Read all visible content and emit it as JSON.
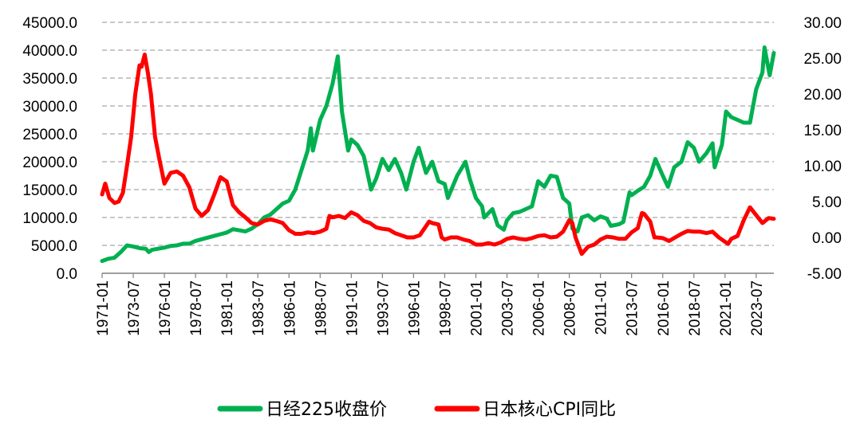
{
  "chart_data": {
    "type": "line",
    "title": "",
    "xlabel": "",
    "ylabel": "",
    "y2label": "",
    "x_start": "1971-01",
    "x_end": "2024-12",
    "x_ticks": [
      "1971-01",
      "1973-07",
      "1976-01",
      "1978-07",
      "1981-01",
      "1983-07",
      "1986-01",
      "1988-07",
      "1991-01",
      "1993-07",
      "1996-01",
      "1998-07",
      "2001-01",
      "2003-07",
      "2006-01",
      "2008-07",
      "2011-01",
      "2013-07",
      "2016-01",
      "2018-07",
      "2021-01",
      "2023-07"
    ],
    "y_left": {
      "min": 0,
      "max": 45000,
      "ticks": [
        "0.0",
        "5000.0",
        "10000.0",
        "15000.0",
        "20000.0",
        "25000.0",
        "30000.0",
        "35000.0",
        "40000.0",
        "45000.0"
      ]
    },
    "y_right": {
      "min": -5,
      "max": 30,
      "ticks": [
        "-5.00",
        "0.00",
        "5.00",
        "10.00",
        "15.00",
        "20.00",
        "25.00",
        "30.00"
      ]
    },
    "grid": "horizontal-dashed",
    "legend_position": "bottom",
    "series": [
      {
        "name": "日经225收盘价",
        "axis": "left",
        "color": "#00b050",
        "points": [
          [
            "1971-01",
            2200
          ],
          [
            "1971-07",
            2600
          ],
          [
            "1972-01",
            2800
          ],
          [
            "1972-07",
            3800
          ],
          [
            "1973-01",
            5000
          ],
          [
            "1973-07",
            4800
          ],
          [
            "1974-01",
            4500
          ],
          [
            "1974-07",
            4400
          ],
          [
            "1974-10",
            3800
          ],
          [
            "1975-01",
            4200
          ],
          [
            "1975-07",
            4400
          ],
          [
            "1976-01",
            4600
          ],
          [
            "1976-07",
            4900
          ],
          [
            "1977-01",
            5000
          ],
          [
            "1977-07",
            5300
          ],
          [
            "1978-01",
            5300
          ],
          [
            "1978-07",
            5800
          ],
          [
            "1979-01",
            6100
          ],
          [
            "1979-07",
            6400
          ],
          [
            "1980-01",
            6700
          ],
          [
            "1980-07",
            7000
          ],
          [
            "1981-01",
            7300
          ],
          [
            "1981-07",
            7900
          ],
          [
            "1982-01",
            7700
          ],
          [
            "1982-07",
            7500
          ],
          [
            "1983-01",
            8000
          ],
          [
            "1983-07",
            8800
          ],
          [
            "1984-01",
            10000
          ],
          [
            "1984-07",
            10500
          ],
          [
            "1985-01",
            11500
          ],
          [
            "1985-07",
            12500
          ],
          [
            "1986-01",
            13000
          ],
          [
            "1986-07",
            15000
          ],
          [
            "1987-01",
            18500
          ],
          [
            "1987-07",
            22000
          ],
          [
            "1987-10",
            26000
          ],
          [
            "1987-12",
            22000
          ],
          [
            "1988-07",
            27500
          ],
          [
            "1989-01",
            30000
          ],
          [
            "1989-07",
            34000
          ],
          [
            "1989-12",
            38900
          ],
          [
            "1990-04",
            29000
          ],
          [
            "1990-10",
            22000
          ],
          [
            "1991-01",
            24000
          ],
          [
            "1991-07",
            23000
          ],
          [
            "1992-01",
            21000
          ],
          [
            "1992-08",
            15000
          ],
          [
            "1993-01",
            17000
          ],
          [
            "1993-07",
            20500
          ],
          [
            "1994-01",
            18500
          ],
          [
            "1994-07",
            20500
          ],
          [
            "1995-01",
            18000
          ],
          [
            "1995-06",
            15000
          ],
          [
            "1996-01",
            20000
          ],
          [
            "1996-06",
            22500
          ],
          [
            "1997-01",
            18000
          ],
          [
            "1997-07",
            20000
          ],
          [
            "1998-01",
            16500
          ],
          [
            "1998-07",
            16000
          ],
          [
            "1998-10",
            13500
          ],
          [
            "1999-07",
            17500
          ],
          [
            "2000-03",
            20000
          ],
          [
            "2000-07",
            17000
          ],
          [
            "2001-01",
            13500
          ],
          [
            "2001-07",
            12000
          ],
          [
            "2001-09",
            10000
          ],
          [
            "2002-05",
            11500
          ],
          [
            "2002-10",
            8600
          ],
          [
            "2003-04",
            7800
          ],
          [
            "2003-07",
            9500
          ],
          [
            "2004-01",
            10800
          ],
          [
            "2004-07",
            11000
          ],
          [
            "2005-01",
            11500
          ],
          [
            "2005-07",
            12000
          ],
          [
            "2006-01",
            16500
          ],
          [
            "2006-07",
            15500
          ],
          [
            "2007-01",
            17500
          ],
          [
            "2007-07",
            17300
          ],
          [
            "2008-01",
            13500
          ],
          [
            "2008-07",
            12500
          ],
          [
            "2008-10",
            8000
          ],
          [
            "2009-03",
            7500
          ],
          [
            "2009-07",
            10000
          ],
          [
            "2010-01",
            10400
          ],
          [
            "2010-07",
            9500
          ],
          [
            "2011-01",
            10200
          ],
          [
            "2011-07",
            9800
          ],
          [
            "2011-11",
            8500
          ],
          [
            "2012-07",
            8800
          ],
          [
            "2012-11",
            9200
          ],
          [
            "2013-05",
            14500
          ],
          [
            "2013-07",
            14000
          ],
          [
            "2014-01",
            14800
          ],
          [
            "2014-07",
            15500
          ],
          [
            "2015-01",
            17500
          ],
          [
            "2015-06",
            20500
          ],
          [
            "2016-01",
            17500
          ],
          [
            "2016-06",
            15500
          ],
          [
            "2016-12",
            19000
          ],
          [
            "2017-07",
            20000
          ],
          [
            "2018-01",
            23500
          ],
          [
            "2018-07",
            22500
          ],
          [
            "2018-12",
            20000
          ],
          [
            "2019-07",
            21500
          ],
          [
            "2020-01",
            23300
          ],
          [
            "2020-03",
            19000
          ],
          [
            "2020-10",
            23000
          ],
          [
            "2021-02",
            29000
          ],
          [
            "2021-07",
            28000
          ],
          [
            "2022-01",
            27500
          ],
          [
            "2022-07",
            27000
          ],
          [
            "2023-01",
            27000
          ],
          [
            "2023-07",
            33000
          ],
          [
            "2024-01",
            36000
          ],
          [
            "2024-03",
            40500
          ],
          [
            "2024-08",
            35500
          ],
          [
            "2024-12",
            39500
          ]
        ]
      },
      {
        "name": "日本核心CPI同比",
        "axis": "right",
        "color": "#ff0000",
        "points": [
          [
            "1971-01",
            6.0
          ],
          [
            "1971-04",
            7.5
          ],
          [
            "1971-08",
            5.5
          ],
          [
            "1972-01",
            4.8
          ],
          [
            "1972-05",
            5.0
          ],
          [
            "1972-09",
            6.2
          ],
          [
            "1973-01",
            10
          ],
          [
            "1973-05",
            14
          ],
          [
            "1973-09",
            20
          ],
          [
            "1974-01",
            24
          ],
          [
            "1974-03",
            23.8
          ],
          [
            "1974-06",
            25.5
          ],
          [
            "1974-09",
            23
          ],
          [
            "1974-12",
            20
          ],
          [
            "1975-04",
            14
          ],
          [
            "1975-08",
            11
          ],
          [
            "1976-01",
            7.5
          ],
          [
            "1976-07",
            9.0
          ],
          [
            "1977-01",
            9.2
          ],
          [
            "1977-07",
            8.6
          ],
          [
            "1978-01",
            7.0
          ],
          [
            "1978-07",
            4.0
          ],
          [
            "1979-01",
            3.0
          ],
          [
            "1979-07",
            3.8
          ],
          [
            "1980-01",
            6.0
          ],
          [
            "1980-07",
            8.4
          ],
          [
            "1981-01",
            7.8
          ],
          [
            "1981-07",
            4.5
          ],
          [
            "1982-01",
            3.5
          ],
          [
            "1982-07",
            2.8
          ],
          [
            "1983-01",
            2.0
          ],
          [
            "1983-07",
            1.8
          ],
          [
            "1984-01",
            2.3
          ],
          [
            "1984-07",
            2.5
          ],
          [
            "1985-01",
            2.3
          ],
          [
            "1985-07",
            2.0
          ],
          [
            "1986-01",
            1.0
          ],
          [
            "1986-07",
            0.5
          ],
          [
            "1987-01",
            0.5
          ],
          [
            "1987-07",
            0.7
          ],
          [
            "1988-01",
            0.6
          ],
          [
            "1988-07",
            0.8
          ],
          [
            "1989-01",
            1.2
          ],
          [
            "1989-04",
            3.0
          ],
          [
            "1989-07",
            2.8
          ],
          [
            "1990-01",
            3.0
          ],
          [
            "1990-07",
            2.7
          ],
          [
            "1991-01",
            3.5
          ],
          [
            "1991-07",
            3.1
          ],
          [
            "1992-01",
            2.3
          ],
          [
            "1992-07",
            2.0
          ],
          [
            "1993-01",
            1.4
          ],
          [
            "1993-07",
            1.2
          ],
          [
            "1994-01",
            1.1
          ],
          [
            "1994-07",
            0.6
          ],
          [
            "1995-01",
            0.3
          ],
          [
            "1995-07",
            0.0
          ],
          [
            "1996-01",
            0.0
          ],
          [
            "1996-07",
            0.3
          ],
          [
            "1997-04",
            2.2
          ],
          [
            "1997-07",
            2.0
          ],
          [
            "1998-01",
            1.8
          ],
          [
            "1998-04",
            0.0
          ],
          [
            "1998-07",
            -0.3
          ],
          [
            "1999-01",
            0.0
          ],
          [
            "1999-07",
            0.0
          ],
          [
            "2000-01",
            -0.3
          ],
          [
            "2000-07",
            -0.5
          ],
          [
            "2001-01",
            -1.0
          ],
          [
            "2001-07",
            -1.0
          ],
          [
            "2002-01",
            -0.8
          ],
          [
            "2002-07",
            -1.0
          ],
          [
            "2003-01",
            -0.7
          ],
          [
            "2003-07",
            -0.2
          ],
          [
            "2004-01",
            0.0
          ],
          [
            "2004-07",
            -0.2
          ],
          [
            "2005-01",
            -0.3
          ],
          [
            "2005-07",
            -0.1
          ],
          [
            "2006-01",
            0.2
          ],
          [
            "2006-07",
            0.3
          ],
          [
            "2007-01",
            0.0
          ],
          [
            "2007-07",
            0.1
          ],
          [
            "2008-01",
            0.8
          ],
          [
            "2008-07",
            2.4
          ],
          [
            "2008-10",
            2.0
          ],
          [
            "2009-01",
            0.0
          ],
          [
            "2009-07",
            -2.3
          ],
          [
            "2010-01",
            -1.3
          ],
          [
            "2010-07",
            -1.0
          ],
          [
            "2011-01",
            -0.3
          ],
          [
            "2011-07",
            0.1
          ],
          [
            "2012-01",
            0.0
          ],
          [
            "2012-07",
            -0.2
          ],
          [
            "2013-01",
            -0.2
          ],
          [
            "2013-07",
            0.7
          ],
          [
            "2014-01",
            1.3
          ],
          [
            "2014-05",
            3.4
          ],
          [
            "2014-07",
            3.3
          ],
          [
            "2015-01",
            2.2
          ],
          [
            "2015-05",
            0.0
          ],
          [
            "2015-07",
            0.0
          ],
          [
            "2016-01",
            -0.1
          ],
          [
            "2016-07",
            -0.5
          ],
          [
            "2017-01",
            0.0
          ],
          [
            "2017-07",
            0.5
          ],
          [
            "2018-01",
            0.9
          ],
          [
            "2018-07",
            0.8
          ],
          [
            "2019-01",
            0.8
          ],
          [
            "2019-07",
            0.6
          ],
          [
            "2019-10",
            0.7
          ],
          [
            "2020-01",
            0.8
          ],
          [
            "2020-07",
            0.0
          ],
          [
            "2021-01",
            -0.6
          ],
          [
            "2021-04",
            -0.9
          ],
          [
            "2021-07",
            -0.2
          ],
          [
            "2022-01",
            0.2
          ],
          [
            "2022-07",
            2.4
          ],
          [
            "2023-01",
            4.2
          ],
          [
            "2023-07",
            3.1
          ],
          [
            "2024-01",
            2.0
          ],
          [
            "2024-07",
            2.7
          ],
          [
            "2024-12",
            2.6
          ]
        ]
      }
    ]
  }
}
